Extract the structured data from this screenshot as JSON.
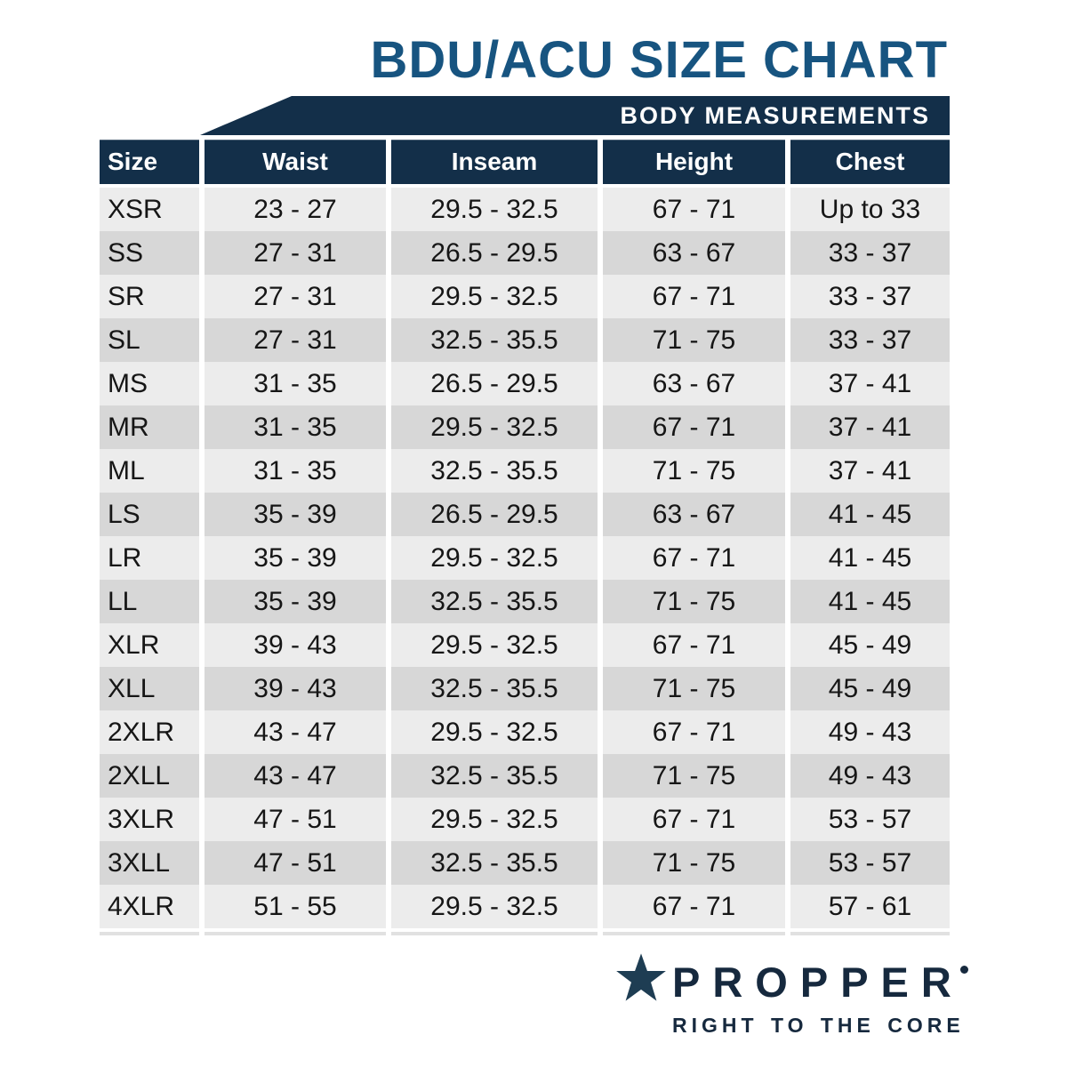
{
  "page": {
    "title": "BDU/ACU SIZE CHART",
    "banner": "BODY MEASUREMENTS"
  },
  "chart_data": {
    "type": "table",
    "title": "BDU/ACU SIZE CHART",
    "subtitle": "BODY MEASUREMENTS",
    "columns": [
      "Size",
      "Waist",
      "Inseam",
      "Height",
      "Chest"
    ],
    "rows": [
      [
        "XSR",
        "23 - 27",
        "29.5 - 32.5",
        "67 - 71",
        "Up to 33"
      ],
      [
        "SS",
        "27 - 31",
        "26.5 - 29.5",
        "63 - 67",
        "33 - 37"
      ],
      [
        "SR",
        "27 - 31",
        "29.5 - 32.5",
        "67 - 71",
        "33 - 37"
      ],
      [
        "SL",
        "27 - 31",
        "32.5 - 35.5",
        "71 - 75",
        "33 - 37"
      ],
      [
        "MS",
        "31 - 35",
        "26.5 - 29.5",
        "63 - 67",
        "37 - 41"
      ],
      [
        "MR",
        "31 - 35",
        "29.5 - 32.5",
        "67 - 71",
        "37 - 41"
      ],
      [
        "ML",
        "31 - 35",
        "32.5 - 35.5",
        "71 - 75",
        "37 - 41"
      ],
      [
        "LS",
        "35 - 39",
        "26.5 - 29.5",
        "63 - 67",
        "41 - 45"
      ],
      [
        "LR",
        "35 - 39",
        "29.5 - 32.5",
        "67 - 71",
        "41 - 45"
      ],
      [
        "LL",
        "35 - 39",
        "32.5 - 35.5",
        "71 - 75",
        "41 - 45"
      ],
      [
        "XLR",
        "39 - 43",
        "29.5 - 32.5",
        "67 - 71",
        "45 - 49"
      ],
      [
        "XLL",
        "39 - 43",
        "32.5 - 35.5",
        "71 - 75",
        "45 - 49"
      ],
      [
        "2XLR",
        "43 - 47",
        "29.5 - 32.5",
        "67 - 71",
        "49 - 43"
      ],
      [
        "2XLL",
        "43 - 47",
        "32.5 - 35.5",
        "71 - 75",
        "49 - 43"
      ],
      [
        "3XLR",
        "47 - 51",
        "29.5 - 32.5",
        "67 - 71",
        "53 - 57"
      ],
      [
        "3XLL",
        "47 - 51",
        "32.5 - 35.5",
        "71 - 75",
        "53 - 57"
      ],
      [
        "4XLR",
        "51 - 55",
        "29.5 - 32.5",
        "67 - 71",
        "57 - 61"
      ]
    ]
  },
  "logo": {
    "brand": "PROPPER",
    "registered_mark": "®",
    "tagline": "RIGHT TO THE CORE"
  },
  "colors": {
    "navy": "#132f49",
    "title_blue": "#175480",
    "row_light": "#ececec",
    "row_gray": "#d7d7d7",
    "text": "#161616",
    "logo_navy": "#16293e",
    "star_navy": "#1e3d53"
  }
}
